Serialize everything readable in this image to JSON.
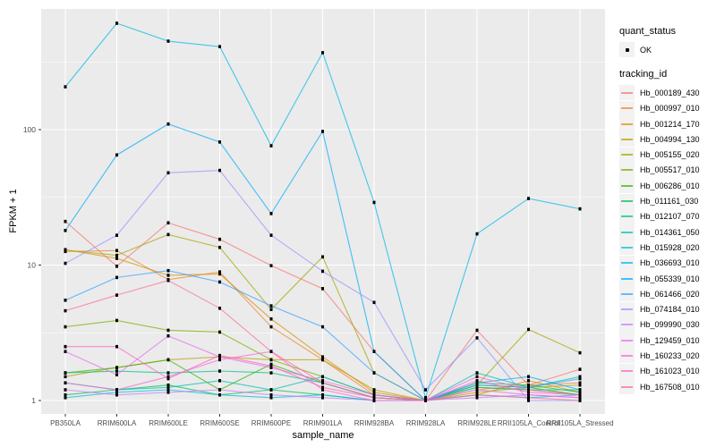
{
  "figure": {
    "y_axis_title": "FPKM + 1",
    "x_axis_title": "sample_name",
    "panel_color": "#EBEBEB",
    "grid_color": "#FFFFFF",
    "tick_text_color": "#4D4D4D",
    "tick_mark_color": "#333333",
    "point_color": "#000000"
  },
  "legend": {
    "quant_status_title": "quant_status",
    "quant_status_ok_label": "OK",
    "tracking_id_title": "tracking_id"
  },
  "chart_data": {
    "type": "line",
    "title": "",
    "xlabel": "sample_name",
    "ylabel": "FPKM + 1",
    "y_scale": "log10",
    "y_breaks": [
      1,
      10,
      100
    ],
    "y_tick_labels": [
      "1",
      "10",
      "100"
    ],
    "y_minor_breaks": [
      3.162,
      31.62,
      316.2
    ],
    "ylim": [
      0.8,
      780
    ],
    "grid": true,
    "legend_position": "right",
    "categories": [
      "PB350LA",
      "RRIM600LA",
      "RRIM600LE",
      "RRIM600SE",
      "RRIM600PE",
      "RRIM901LA",
      "RRIM928BA",
      "RRIM928LA",
      "RRIM928LE",
      "RRII105LA_Control",
      "RRII105LA_Stressed"
    ],
    "series": [
      {
        "name": "Hb_000189_430",
        "color": "#F8766D",
        "values": [
          21,
          9.8,
          20.5,
          15.5,
          9.9,
          6.7,
          2.3,
          1.0,
          3.3,
          1.3,
          1.7
        ]
      },
      {
        "name": "Hb_000997_010",
        "color": "#EA8331",
        "values": [
          12.6,
          12.8,
          7.8,
          8.9,
          3.5,
          2.0,
          1.1,
          1.0,
          1.2,
          1.3,
          1.35
        ]
      },
      {
        "name": "Hb_001214_170",
        "color": "#D89000",
        "values": [
          13.0,
          11.2,
          8.4,
          8.6,
          4.0,
          2.1,
          1.15,
          1.0,
          1.1,
          1.4,
          1.15
        ]
      },
      {
        "name": "Hb_004994_130",
        "color": "#C09B00",
        "values": [
          1.5,
          1.75,
          2.0,
          2.1,
          2.0,
          2.0,
          1.2,
          1.0,
          1.15,
          1.25,
          1.3
        ]
      },
      {
        "name": "Hb_005155_020",
        "color": "#A3A500",
        "values": [
          12.9,
          11.8,
          16.8,
          13.5,
          4.7,
          11.5,
          1.6,
          1.0,
          1.3,
          3.35,
          2.25
        ]
      },
      {
        "name": "Hb_005517_010",
        "color": "#7CAE00",
        "values": [
          3.5,
          3.9,
          3.3,
          3.2,
          2.0,
          1.5,
          1.1,
          1.0,
          1.25,
          1.2,
          1.1
        ]
      },
      {
        "name": "Hb_006286_010",
        "color": "#39B600",
        "values": [
          1.6,
          1.75,
          2.0,
          1.2,
          1.85,
          1.35,
          1.05,
          1.0,
          1.3,
          1.25,
          1.1
        ]
      },
      {
        "name": "Hb_011161_030",
        "color": "#00BB4E",
        "values": [
          1.1,
          1.2,
          1.3,
          1.1,
          1.2,
          1.1,
          1.0,
          1.0,
          1.35,
          1.3,
          1.15
        ]
      },
      {
        "name": "Hb_012107_070",
        "color": "#00C087",
        "values": [
          1.6,
          1.65,
          1.6,
          1.65,
          1.6,
          1.35,
          1.05,
          1.0,
          1.25,
          1.2,
          1.2
        ]
      },
      {
        "name": "Hb_014361_050",
        "color": "#00C0B2",
        "values": [
          1.35,
          1.2,
          1.25,
          1.4,
          1.2,
          1.5,
          1.1,
          1.0,
          1.6,
          1.25,
          1.5
        ]
      },
      {
        "name": "Hb_015928_020",
        "color": "#00BFD4",
        "values": [
          1.05,
          1.15,
          1.2,
          1.1,
          1.05,
          1.1,
          1.0,
          1.0,
          1.1,
          1.05,
          1.1
        ]
      },
      {
        "name": "Hb_036693_010",
        "color": "#00B8E7",
        "values": [
          207,
          610,
          450,
          410,
          76,
          370,
          29,
          1.05,
          17,
          31,
          26
        ]
      },
      {
        "name": "Hb_055339_010",
        "color": "#00ACFC",
        "values": [
          18,
          65,
          110,
          81,
          24,
          97,
          2.3,
          1.0,
          1.35,
          1.5,
          1.2
        ]
      },
      {
        "name": "Hb_061466_020",
        "color": "#35A2FF",
        "values": [
          5.5,
          8.1,
          9.1,
          7.5,
          5.0,
          3.5,
          1.6,
          1.0,
          1.3,
          1.25,
          1.45
        ]
      },
      {
        "name": "Hb_074184_010",
        "color": "#9590FF",
        "values": [
          10.3,
          16.6,
          48,
          50,
          16.6,
          9.0,
          5.3,
          1.2,
          2.9,
          1.0,
          1.0
        ]
      },
      {
        "name": "Hb_099990_030",
        "color": "#C77CFF",
        "values": [
          1.2,
          1.1,
          1.15,
          1.2,
          1.1,
          1.05,
          1.0,
          1.0,
          1.05,
          1.1,
          1.05
        ]
      },
      {
        "name": "Hb_129459_010",
        "color": "#E76BF3",
        "values": [
          2.3,
          1.55,
          3.0,
          2.1,
          1.75,
          1.4,
          1.1,
          1.0,
          1.2,
          1.1,
          1.05
        ]
      },
      {
        "name": "Hb_160233_020",
        "color": "#FA62DB",
        "values": [
          1.35,
          1.2,
          1.5,
          2.0,
          2.3,
          1.2,
          1.0,
          1.0,
          1.5,
          1.2,
          1.1
        ]
      },
      {
        "name": "Hb_161023_010",
        "color": "#FF61C2",
        "values": [
          2.5,
          2.5,
          1.45,
          2.15,
          1.8,
          1.25,
          1.05,
          1.0,
          1.4,
          1.15,
          1.1
        ]
      },
      {
        "name": "Hb_167508_010",
        "color": "#FF6A98",
        "values": [
          4.6,
          6.0,
          7.7,
          4.8,
          2.3,
          1.35,
          1.05,
          1.0,
          1.1,
          1.05,
          1.0
        ]
      }
    ]
  }
}
